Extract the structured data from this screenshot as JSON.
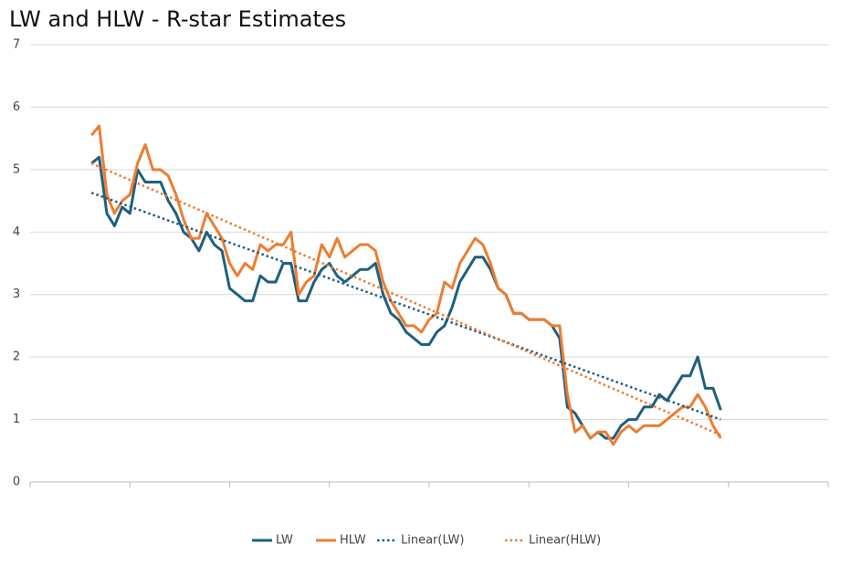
{
  "chart_data": {
    "type": "line",
    "title": "LW and HLW - R-star Estimates",
    "ylim": [
      0,
      7
    ],
    "yticks": [
      0,
      1,
      2,
      3,
      4,
      5,
      6,
      7
    ],
    "grid": true,
    "legend": "bottom",
    "series": [
      {
        "name": "LW",
        "color": "#1f5f7f",
        "dash": false,
        "values": [
          null,
          null,
          null,
          null,
          null,
          null,
          null,
          null,
          5.1,
          5.2,
          4.3,
          4.1,
          4.4,
          4.3,
          5.0,
          4.8,
          4.8,
          4.8,
          4.5,
          4.3,
          4.0,
          3.9,
          3.7,
          4.0,
          3.8,
          3.7,
          3.1,
          3.0,
          2.9,
          2.9,
          3.3,
          3.2,
          3.2,
          3.5,
          3.5,
          2.9,
          2.9,
          3.2,
          3.4,
          3.5,
          3.3,
          3.2,
          3.3,
          3.4,
          3.4,
          3.5,
          3.0,
          2.7,
          2.6,
          2.4,
          2.3,
          2.2,
          2.2,
          2.4,
          2.5,
          2.8,
          3.2,
          3.4,
          3.6,
          3.6,
          3.4,
          3.1,
          3.0,
          2.7,
          2.7,
          2.6,
          2.6,
          2.6,
          2.5,
          2.3,
          1.2,
          1.1,
          0.9,
          0.7,
          0.8,
          0.7,
          0.7,
          0.9,
          1.0,
          1.0,
          1.2,
          1.2,
          1.4,
          1.3,
          1.5,
          1.7,
          1.7,
          2.0,
          1.5,
          1.5,
          1.15,
          null,
          null,
          null,
          null,
          null,
          null,
          null,
          null,
          null,
          null,
          null,
          null,
          null,
          null
        ]
      },
      {
        "name": "HLW",
        "color": "#ed7d31",
        "dash": false,
        "values": [
          null,
          null,
          null,
          null,
          null,
          null,
          null,
          null,
          5.55,
          5.7,
          4.6,
          4.3,
          4.5,
          4.6,
          5.1,
          5.4,
          5.0,
          5.0,
          4.9,
          4.6,
          4.2,
          3.9,
          3.9,
          4.3,
          4.1,
          3.9,
          3.5,
          3.3,
          3.5,
          3.4,
          3.8,
          3.7,
          3.8,
          3.8,
          4.0,
          3.0,
          3.2,
          3.3,
          3.8,
          3.6,
          3.9,
          3.6,
          3.7,
          3.8,
          3.8,
          3.7,
          3.2,
          2.9,
          2.7,
          2.5,
          2.5,
          2.4,
          2.6,
          2.7,
          3.2,
          3.1,
          3.5,
          3.7,
          3.9,
          3.8,
          3.5,
          3.1,
          3.0,
          2.7,
          2.7,
          2.6,
          2.6,
          2.6,
          2.5,
          2.5,
          1.4,
          0.8,
          0.9,
          0.7,
          0.8,
          0.8,
          0.6,
          0.8,
          0.9,
          0.8,
          0.9,
          0.9,
          0.9,
          1.0,
          1.1,
          1.2,
          1.2,
          1.4,
          1.2,
          0.9,
          0.7,
          null,
          null,
          null,
          null,
          null,
          null,
          null,
          null,
          null,
          null,
          null,
          null,
          null,
          null
        ]
      },
      {
        "name": "Linear(LW)",
        "color": "#1f5f7f",
        "dash": true,
        "values": [
          null,
          null,
          null,
          null,
          null,
          null,
          null,
          null,
          4.63,
          null,
          null,
          null,
          null,
          null,
          null,
          null,
          null,
          null,
          null,
          null,
          null,
          null,
          null,
          null,
          null,
          null,
          null,
          null,
          null,
          null,
          null,
          null,
          null,
          null,
          null,
          null,
          null,
          null,
          null,
          null,
          null,
          null,
          null,
          null,
          null,
          null,
          null,
          null,
          null,
          null,
          null,
          null,
          null,
          null,
          null,
          null,
          null,
          null,
          null,
          null,
          null,
          null,
          null,
          null,
          null,
          null,
          null,
          null,
          null,
          null,
          null,
          null,
          null,
          null,
          null,
          null,
          null,
          null,
          null,
          null,
          null,
          null,
          null,
          null,
          null,
          null,
          null,
          null,
          null,
          null,
          1.0,
          null,
          null,
          null,
          null,
          null,
          null,
          null,
          null,
          null,
          null,
          null,
          null,
          null,
          null
        ]
      },
      {
        "name": "Linear(HLW)",
        "color": "#ed7d31",
        "dash": true,
        "values": [
          null,
          null,
          null,
          null,
          null,
          null,
          null,
          null,
          5.1,
          null,
          null,
          null,
          null,
          null,
          null,
          null,
          null,
          null,
          null,
          null,
          null,
          null,
          null,
          null,
          null,
          null,
          null,
          null,
          null,
          null,
          null,
          null,
          null,
          null,
          null,
          null,
          null,
          null,
          null,
          null,
          null,
          null,
          null,
          null,
          null,
          null,
          null,
          null,
          null,
          null,
          null,
          null,
          null,
          null,
          null,
          null,
          null,
          null,
          null,
          null,
          null,
          null,
          null,
          null,
          null,
          null,
          null,
          null,
          null,
          null,
          null,
          null,
          null,
          null,
          null,
          null,
          null,
          null,
          null,
          null,
          null,
          null,
          null,
          null,
          null,
          null,
          null,
          null,
          null,
          null,
          0.75,
          null,
          null,
          null,
          null,
          null,
          null,
          null,
          null,
          null,
          null,
          null,
          null,
          null,
          null
        ]
      }
    ]
  }
}
